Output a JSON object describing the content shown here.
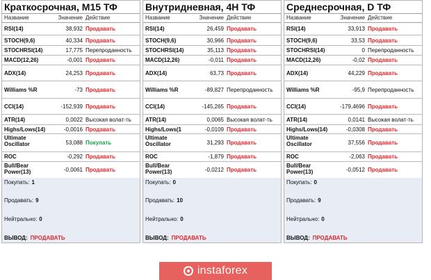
{
  "header": {
    "name": "Название",
    "value": "Значение",
    "action": "Действие"
  },
  "panels": [
    {
      "title": "Краткосрочная, M15 ТФ",
      "rows": [
        {
          "name": "RSI(14)",
          "value": "38,932",
          "action": "Продавать",
          "type": "sell"
        },
        {
          "name": "STOCH(9,6)",
          "value": "40,334",
          "action": "Продавать",
          "type": "sell"
        },
        {
          "name": "STOCHRSI(14)",
          "value": "17,775",
          "action": "Перепроданность",
          "type": "neutral"
        },
        {
          "name": "MACD(12,26)",
          "value": "-0,001",
          "action": "Продавать",
          "type": "sell"
        },
        {
          "name": "ADX(14)",
          "value": "24,253",
          "action": "Продавать",
          "type": "sell"
        },
        {
          "name": "Williams %R",
          "value": "-73",
          "action": "Продавать",
          "type": "sell"
        },
        {
          "name": "CCI(14)",
          "value": "-152,939",
          "action": "Продавать",
          "type": "sell"
        },
        {
          "name": "ATR(14)",
          "value": "0,0022",
          "action": "Высокая волат-ть",
          "type": "neutral"
        },
        {
          "name": "Highs/Lows(14)",
          "value": "-0,0016",
          "action": "Продавать",
          "type": "sell"
        },
        {
          "name": "Ultimate Oscillator",
          "value": "53,088",
          "action": "Покупать",
          "type": "buy"
        },
        {
          "name": "ROC",
          "value": "-0,292",
          "action": "Продавать",
          "type": "sell"
        },
        {
          "name": "Bull/Bear Power(13)",
          "value": "-0,0061",
          "action": "Продавать",
          "type": "sell"
        }
      ],
      "summary": {
        "buy_label": "Покупать:",
        "buy_count": "1",
        "sell_label": "Продавать:",
        "sell_count": "9",
        "neutral_label": "Нейтрально:",
        "neutral_count": "0",
        "verdict_label": "ВЫВОД:",
        "verdict": "ПРОДАВАТЬ"
      }
    },
    {
      "title": "Внутридневная, 4H ТФ",
      "rows": [
        {
          "name": "RSI(14)",
          "value": "26,459",
          "action": "Продавать",
          "type": "sell"
        },
        {
          "name": "STOCH(9,6)",
          "value": "30,966",
          "action": "Продавать",
          "type": "sell"
        },
        {
          "name": "STOCHRSI(14)",
          "value": "35,113",
          "action": "Продавать",
          "type": "sell"
        },
        {
          "name": "MACD(12,26)",
          "value": "-0,011",
          "action": "Продавать",
          "type": "sell"
        },
        {
          "name": "ADX(14)",
          "value": "63,73",
          "action": "Продавать",
          "type": "sell"
        },
        {
          "name": "Williams %R",
          "value": "-89,827",
          "action": "Перепроданность",
          "type": "neutral"
        },
        {
          "name": "CCI(14)",
          "value": "-145,265",
          "action": "Продавать",
          "type": "sell"
        },
        {
          "name": "ATR(14)",
          "value": "0,0065",
          "action": "Высокая волат-ть",
          "type": "neutral"
        },
        {
          "name": "Highs/Lows(1",
          "value": "-0,0109",
          "action": "Продавать",
          "type": "sell"
        },
        {
          "name": "Ultimate Oscillator",
          "value": "31,293",
          "action": "Продавать",
          "type": "sell"
        },
        {
          "name": "ROC",
          "value": "-1,879",
          "action": "Продавать",
          "type": "sell"
        },
        {
          "name": "Bull/Bear Power(13)",
          "value": "-0,0212",
          "action": "Продавать",
          "type": "sell"
        }
      ],
      "summary": {
        "buy_label": "Покупать:",
        "buy_count": "0",
        "sell_label": "Продавать:",
        "sell_count": "10",
        "neutral_label": "Нейтрально:",
        "neutral_count": "0",
        "verdict_label": "ВЫВОД:",
        "verdict": "ПРОДАВАТЬ"
      }
    },
    {
      "title": "Среднесрочная, D ТФ",
      "rows": [
        {
          "name": "RSI(14)",
          "value": "33,913",
          "action": "Продавать",
          "type": "sell"
        },
        {
          "name": "STOCH(9,6)",
          "value": "33,53",
          "action": "Продавать",
          "type": "sell"
        },
        {
          "name": "STOCHRSI(14)",
          "value": "0",
          "action": "Перепроданность",
          "type": "neutral"
        },
        {
          "name": "MACD(12,26)",
          "value": "-0,02",
          "action": "Продавать",
          "type": "sell"
        },
        {
          "name": "ADX(14)",
          "value": "44,229",
          "action": "Продавать",
          "type": "sell"
        },
        {
          "name": "Williams %R",
          "value": "-95,9",
          "action": "Перепроданность",
          "type": "neutral"
        },
        {
          "name": "CCI(14)",
          "value": "-179,4696",
          "action": "Продавать",
          "type": "sell"
        },
        {
          "name": "ATR(14)",
          "value": "0,0141",
          "action": "Высокая волат-ть",
          "type": "neutral"
        },
        {
          "name": "Highs/Lows(14)",
          "value": "-0,0308",
          "action": "Продавать",
          "type": "sell"
        },
        {
          "name": "Ultimate Oscillator",
          "value": "37,556",
          "action": "Продавать",
          "type": "sell"
        },
        {
          "name": "ROC",
          "value": "-2,063",
          "action": "Продавать",
          "type": "sell"
        },
        {
          "name": "Bull/Bear Power(13)",
          "value": "-0,0512",
          "action": "Продавать",
          "type": "sell"
        }
      ],
      "summary": {
        "buy_label": "Покупать:",
        "buy_count": "0",
        "sell_label": "Продавать:",
        "sell_count": "9",
        "neutral_label": "Нейтрально:",
        "neutral_count": "0",
        "verdict_label": "ВЫВОД:",
        "verdict": "ПРОДАВАТЬ"
      }
    }
  ],
  "brand": {
    "name": "instaforex",
    "icon": "instaforex-logo-icon",
    "color": "#e7615e"
  },
  "colors": {
    "sell": "#e0262b",
    "buy": "#1aa34a",
    "summary_bg": "#e8edf5"
  }
}
